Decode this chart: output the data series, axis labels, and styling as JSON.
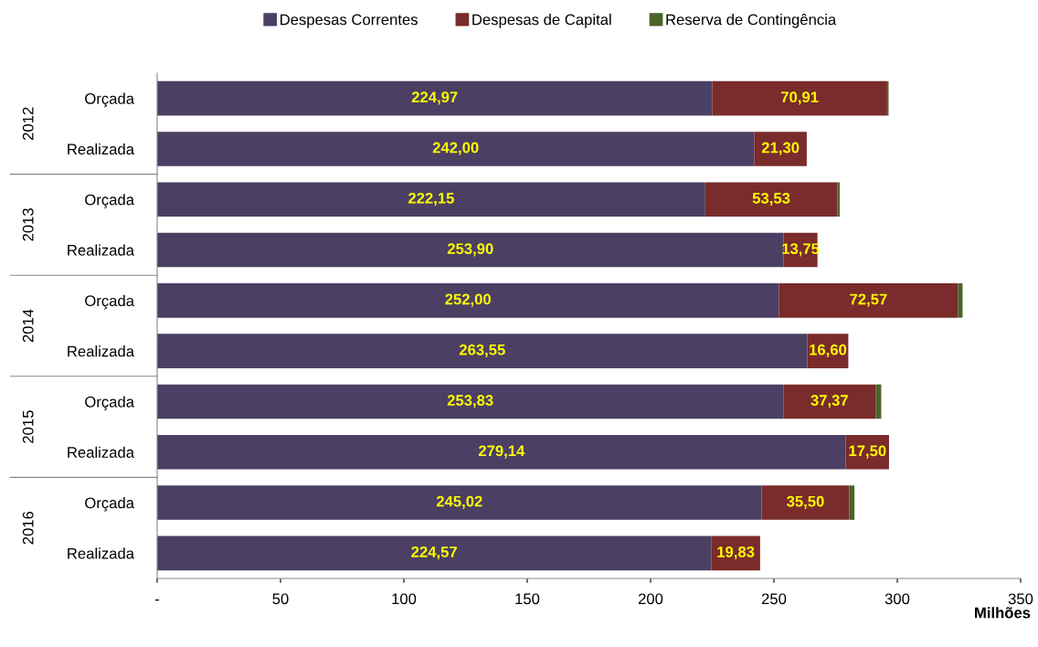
{
  "chart_data": {
    "type": "bar",
    "orientation": "horizontal",
    "stacked": true,
    "legend": "top",
    "xlabel": "Milhões",
    "categories": [
      "Orçada",
      "Realizada",
      "Orçada",
      "Realizada",
      "Orçada",
      "Realizada",
      "Orçada",
      "Realizada",
      "Orçada",
      "Realizada"
    ],
    "annotations": [
      "2012",
      "2013",
      "2014",
      "2015",
      "2016"
    ],
    "xlim": [
      0,
      350
    ],
    "xticks": [
      {
        "value": 0,
        "label": "-"
      },
      50,
      100,
      150,
      200,
      250,
      300,
      350
    ],
    "series": [
      {
        "name": "Despesas Correntes",
        "color": "#4b3f63",
        "values": [
          224.97,
          242.0,
          222.15,
          253.9,
          252.0,
          263.55,
          253.83,
          279.14,
          245.02,
          224.57
        ],
        "value_labels": [
          "224,97",
          "242,00",
          "222,15",
          "253,90",
          "252,00",
          "263,55",
          "253,83",
          "279,14",
          "245,02",
          "224,57"
        ]
      },
      {
        "name": "Despesas de Capital",
        "color": "#7a2b2b",
        "values": [
          70.91,
          21.3,
          53.53,
          13.75,
          72.57,
          16.6,
          37.37,
          17.5,
          35.5,
          19.83
        ],
        "value_labels": [
          "70,91",
          "21,30",
          "53,53",
          "13,75",
          "72,57",
          "16,60",
          "37,37",
          "17,50",
          "35,50",
          "19,83"
        ]
      },
      {
        "name": "Reserva de Contingência",
        "color": "#4a6528",
        "values": [
          0.6,
          null,
          1.0,
          null,
          1.9,
          null,
          2.3,
          null,
          2.1,
          null
        ]
      }
    ]
  }
}
